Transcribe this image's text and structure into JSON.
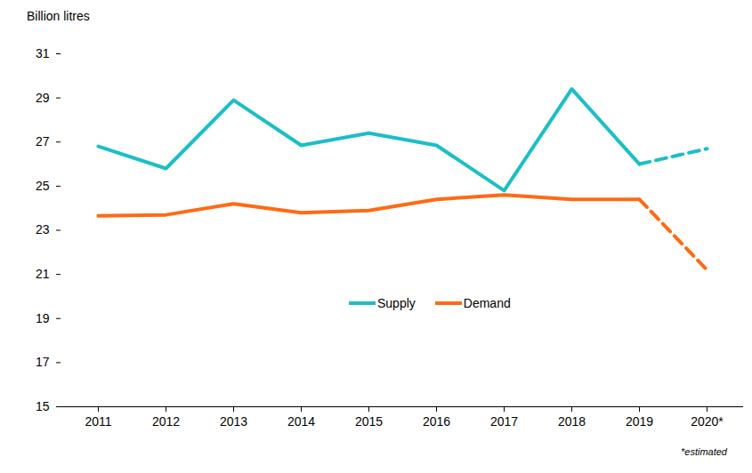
{
  "chart_data": {
    "type": "line",
    "y_label": "Billion litres",
    "caption": "*estimated",
    "categories": [
      "2011",
      "2012",
      "2013",
      "2014",
      "2015",
      "2016",
      "2017",
      "2018",
      "2019",
      "2020*"
    ],
    "series": [
      {
        "name": "Supply",
        "color": "#1bbfc6",
        "line_style": "solid",
        "values": [
          26.8,
          25.8,
          28.9,
          26.85,
          27.4,
          26.85,
          24.8,
          29.4,
          26.0,
          null
        ]
      },
      {
        "name": "Supply",
        "color": "#1bbfc6",
        "line_style": "dashed",
        "values": [
          null,
          null,
          null,
          null,
          null,
          null,
          null,
          null,
          26.0,
          26.7
        ]
      },
      {
        "name": "Demand",
        "color": "#ff6a13",
        "line_style": "solid",
        "values": [
          23.65,
          23.7,
          24.2,
          23.8,
          23.9,
          24.4,
          24.6,
          24.4,
          24.4,
          null
        ]
      },
      {
        "name": "Demand",
        "color": "#ff6a13",
        "line_style": "dashed",
        "values": [
          null,
          null,
          null,
          null,
          null,
          null,
          null,
          null,
          24.4,
          21.2
        ]
      }
    ],
    "ylim": [
      15,
      31
    ],
    "yticks": [
      15,
      17,
      19,
      21,
      23,
      25,
      27,
      29,
      31
    ],
    "grid": false,
    "legend": "center"
  }
}
